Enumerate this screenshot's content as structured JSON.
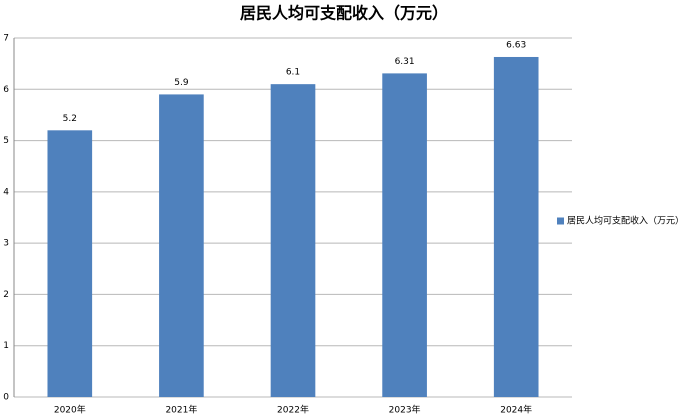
{
  "chart_data": {
    "type": "bar",
    "title": "居民人均可支配收入（万元）",
    "categories": [
      "2020年",
      "2021年",
      "2022年",
      "2023年",
      "2024年"
    ],
    "series": [
      {
        "name": "居民人均可支配收入（万元）",
        "color": "#4f81bd",
        "values": [
          5.2,
          5.9,
          6.1,
          6.31,
          6.63
        ]
      }
    ],
    "ylim": [
      0,
      7
    ],
    "yticks": [
      0,
      1,
      2,
      3,
      4,
      5,
      6,
      7
    ],
    "grid": true,
    "legend": "right"
  }
}
